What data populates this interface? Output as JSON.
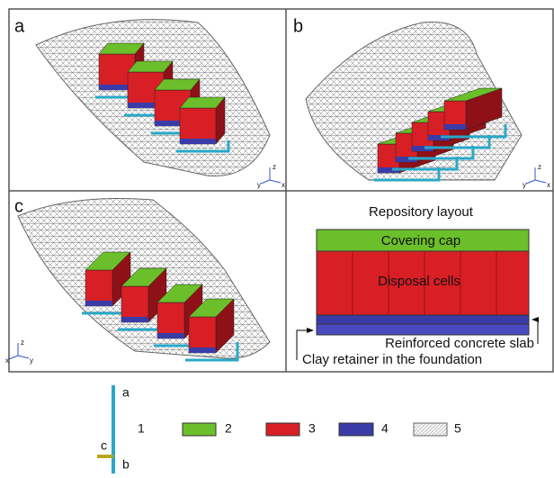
{
  "panels": [
    {
      "label": "a",
      "axes": [
        "z",
        "y",
        "x"
      ]
    },
    {
      "label": "b",
      "axes": [
        "z",
        "y",
        "x"
      ]
    },
    {
      "label": "c",
      "axes": [
        "z",
        "x",
        "y"
      ]
    }
  ],
  "layout": {
    "title": "Repository layout",
    "cap": "Covering cap",
    "cells": "Disposal cells",
    "slab": "Reinforced concrete slab",
    "clay": "Clay retainer in the foundation"
  },
  "legend": {
    "pipe_labels": [
      "a",
      "b",
      "c"
    ],
    "items": [
      "1",
      "2",
      "3",
      "4",
      "5"
    ]
  }
}
